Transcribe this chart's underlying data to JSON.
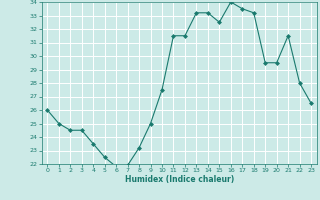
{
  "x": [
    0,
    1,
    2,
    3,
    4,
    5,
    6,
    7,
    8,
    9,
    10,
    11,
    12,
    13,
    14,
    15,
    16,
    17,
    18,
    19,
    20,
    21,
    22,
    23
  ],
  "y": [
    26.0,
    25.0,
    24.5,
    24.5,
    23.5,
    22.5,
    21.8,
    21.9,
    23.2,
    25.0,
    27.5,
    31.5,
    31.5,
    33.2,
    33.2,
    32.5,
    34.0,
    33.5,
    33.2,
    29.5,
    29.5,
    31.5,
    28.0,
    26.5
  ],
  "xlabel": "Humidex (Indice chaleur)",
  "ylabel": "",
  "ylim": [
    22,
    34
  ],
  "xlim": [
    -0.5,
    23.5
  ],
  "yticks": [
    22,
    23,
    24,
    25,
    26,
    27,
    28,
    29,
    30,
    31,
    32,
    33,
    34
  ],
  "xticks": [
    0,
    1,
    2,
    3,
    4,
    5,
    6,
    7,
    8,
    9,
    10,
    11,
    12,
    13,
    14,
    15,
    16,
    17,
    18,
    19,
    20,
    21,
    22,
    23
  ],
  "line_color": "#1a7a6e",
  "marker_color": "#1a7a6e",
  "bg_color": "#cceae7",
  "grid_color": "#b0d8d4",
  "tick_label_color": "#1a7a6e",
  "axis_label_color": "#1a7a6e"
}
